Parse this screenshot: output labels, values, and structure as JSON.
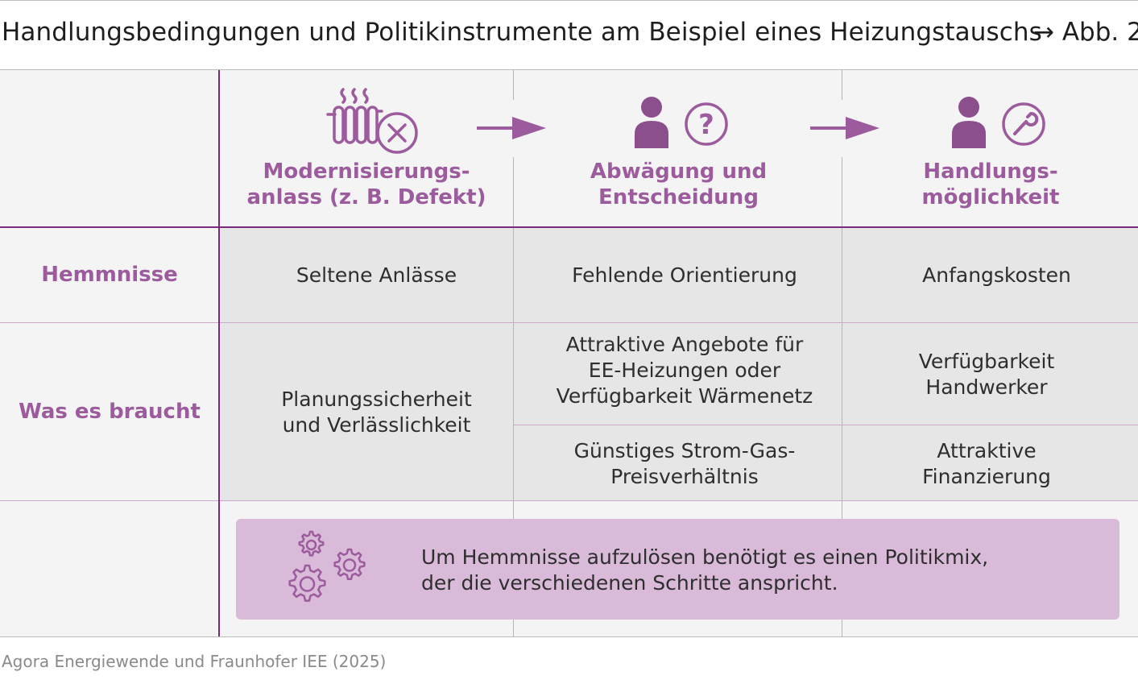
{
  "header": {
    "title": "Handlungsbedingungen und Politikinstrumente am Beispiel eines Heizungstauschs",
    "figure_ref": "→ Abb. 2"
  },
  "phases": [
    {
      "label": "Modernisierungs-\nanlass (z. B. Defekt)",
      "icon": "radiator-x-icon"
    },
    {
      "label": "Abwägung und\nEntscheidung",
      "icon": "person-question-icon"
    },
    {
      "label": "Handlungs-\nmöglichkeit",
      "icon": "person-wrench-icon"
    }
  ],
  "rows": {
    "hemmnisse": {
      "label": "Hemmnisse",
      "cells": [
        "Seltene Anlässe",
        "Fehlende Orientierung",
        "Anfangskosten"
      ]
    },
    "braucht": {
      "label": "Was es braucht",
      "col1": "Planungssicherheit\nund Verlässlichkeit",
      "col2_top": "Attraktive Angebote für\nEE-Heizungen oder\nVerfügbarkeit Wärmenetz",
      "col2_bottom": "Günstiges Strom-Gas-\nPreisverhältnis",
      "col3_top": "Verfügbarkeit\nHandwerker",
      "col3_bottom": "Attraktive\nFinanzierung"
    }
  },
  "callout": {
    "text": "Um Hemmnisse aufzulösen benötigt es einen Politikmix,\nder die verschiedenen Schritte anspricht.",
    "icon": "gears-icon"
  },
  "source": "Agora Energiewende und Fraunhofer IEE (2025)",
  "colors": {
    "accent": "#9b5b9d",
    "accent_dark": "#7a2a7c",
    "callout_bg": "#d9bad8",
    "panel_bg": "#f4f4f4",
    "cell_bg": "#e6e6e6"
  }
}
